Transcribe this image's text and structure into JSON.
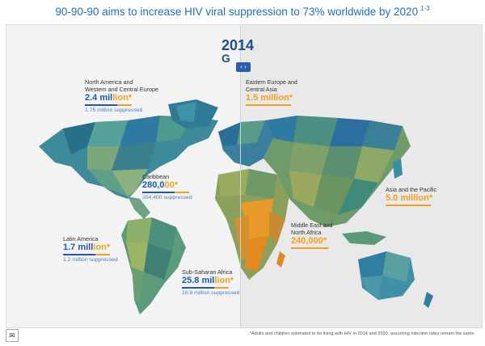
{
  "title": "90-90-90 aims to increase HIV viral suppression to 73% worldwide by 2020",
  "title_refs": "1-3",
  "year_label": "2014",
  "year_label_2": "G",
  "slider_icon": "‹ ›",
  "regions": [
    {
      "id": "north-america",
      "name": "North America and\nWestern and Central Europe",
      "value_blue": "2.4 mil",
      "value_orange": "lion*",
      "suppressed": "1.75 million suppressed"
    },
    {
      "id": "caribbean",
      "name": "Caribbean",
      "value_blue": "280,0",
      "value_orange": "00*",
      "suppressed": "204,400 suppressed"
    },
    {
      "id": "latin-america",
      "name": "Latin America",
      "value_blue": "1.7 mill",
      "value_orange": "ion*",
      "suppressed": "1.2 million suppressed"
    },
    {
      "id": "sub-saharan-africa",
      "name": "Sub-Saharan Africa",
      "value_blue": "25.8 mil",
      "value_orange": "lion*",
      "suppressed": "18.8 million suppressed"
    },
    {
      "id": "eastern-europe",
      "name": "Eastern Europe and\nCentral Asia",
      "value_blue": "",
      "value_orange": "1.5 million*",
      "suppressed": ""
    },
    {
      "id": "middle-east",
      "name": "Middle East and\nNorth Africa",
      "value_blue": "",
      "value_orange": "240,000*",
      "suppressed": ""
    },
    {
      "id": "asia-pacific",
      "name": "Asia and the Pacific",
      "value_blue": "",
      "value_orange": "5.0 million*",
      "suppressed": ""
    }
  ],
  "footnote": "*Adults and children estimated to be living with HIV in 2014 and 2020, assuming infection rates remain the same.",
  "icons": {
    "mail": "envelope-icon",
    "slider": "compare-slider-icon"
  },
  "colors": {
    "blue": "#1f5aa8",
    "orange": "#f0a020",
    "title": "#1f6fb3"
  }
}
